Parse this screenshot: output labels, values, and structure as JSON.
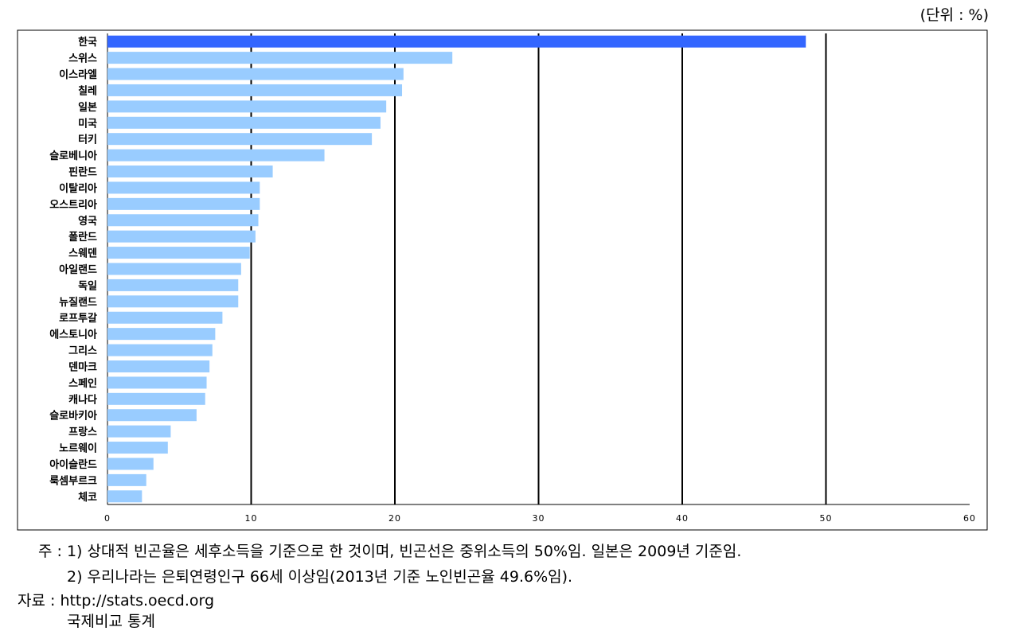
{
  "unit_label": "(단위 : %)",
  "notes": {
    "note1": "주 : 1) 상대적 빈곤율은 세후소득을 기준으로 한 것이며, 빈곤선은 중위소득의 50%임. 일본은 2009년 기준임.",
    "note2": "2) 우리나라는 은퇴연령인구 66세 이상임(2013년 기준 노인빈곤율 49.6%임).",
    "source": "자료 : http://stats.oecd.org",
    "footer_cut": "국제비교 통계"
  },
  "colors": {
    "highlight": "#3366ff",
    "bar": "#99ccff",
    "border": "#000000"
  },
  "chart_data": {
    "type": "bar",
    "orientation": "horizontal",
    "categories": [
      "한국",
      "스위스",
      "이스라엘",
      "칠레",
      "일본",
      "미국",
      "터키",
      "슬로베니아",
      "핀란드",
      "이탈리아",
      "오스트리아",
      "영국",
      "폴란드",
      "스웨덴",
      "아일랜드",
      "독일",
      "뉴질랜드",
      "로프투갈",
      "에스토니아",
      "그리스",
      "덴마크",
      "스페인",
      "캐나다",
      "슬로바키아",
      "프랑스",
      "노르웨이",
      "아이슬란드",
      "룩셈부르크",
      "체코"
    ],
    "values": [
      48.6,
      24.0,
      20.6,
      20.5,
      19.4,
      19.0,
      18.4,
      15.1,
      11.5,
      10.6,
      10.6,
      10.5,
      10.3,
      9.9,
      9.3,
      9.1,
      9.1,
      8.0,
      7.5,
      7.3,
      7.1,
      6.9,
      6.8,
      6.2,
      4.4,
      4.2,
      3.2,
      2.7,
      2.4
    ],
    "highlight_index": 0,
    "xlim": [
      0,
      60
    ],
    "xticks": [
      0,
      10,
      20,
      30,
      40,
      50,
      60
    ],
    "title": "",
    "xlabel": "",
    "ylabel": "",
    "grid": "vertical"
  }
}
